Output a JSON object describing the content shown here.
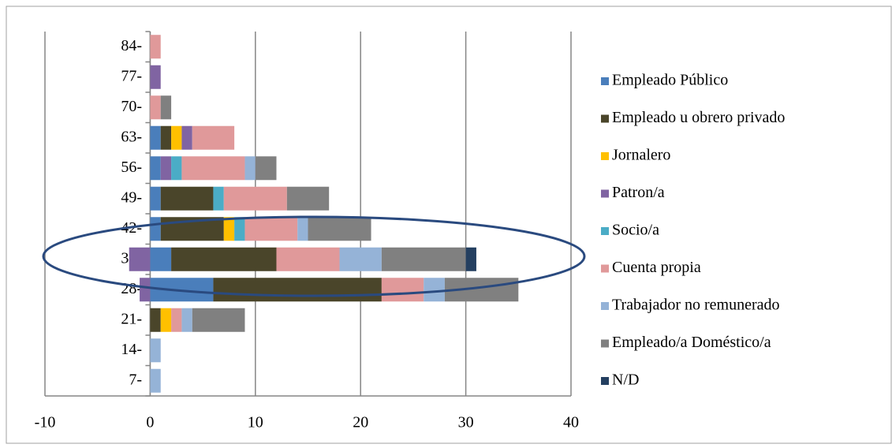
{
  "chart_data": {
    "type": "stacked_barh",
    "categories": [
      "7-",
      "14-",
      "21-",
      "28-",
      "35-",
      "42-",
      "49-",
      "56-",
      "63-",
      "70-",
      "77-",
      "84-"
    ],
    "series": [
      {
        "name": "Empleado Público",
        "color": "#4a7ebb",
        "values": [
          0,
          0,
          0,
          6,
          2,
          1,
          1,
          1,
          1,
          0,
          0,
          0
        ]
      },
      {
        "name": "Empleado u obrero privado",
        "color": "#4a452a",
        "values": [
          0,
          0,
          1,
          16,
          10,
          6,
          5,
          0,
          1,
          0,
          0,
          0
        ]
      },
      {
        "name": "Jornalero",
        "color": "#ffc000",
        "values": [
          0,
          0,
          1,
          0,
          0,
          1,
          0,
          0,
          1,
          0,
          0,
          0
        ]
      },
      {
        "name": "Patron/a",
        "color": "#8064a2",
        "values": [
          0,
          0,
          0,
          -1,
          -2,
          0,
          0,
          1,
          1,
          0,
          1,
          0
        ]
      },
      {
        "name": "Socio/a",
        "color": "#4bacc6",
        "values": [
          0,
          0,
          0,
          0,
          0,
          1,
          1,
          1,
          0,
          0,
          0,
          0
        ]
      },
      {
        "name": "Cuenta propia",
        "color": "#e0999a",
        "values": [
          0,
          0,
          1,
          4,
          6,
          5,
          6,
          6,
          4,
          1,
          0,
          1
        ]
      },
      {
        "name": "Trabajador no remunerado",
        "color": "#95b3d7",
        "values": [
          1,
          1,
          1,
          2,
          4,
          1,
          0,
          1,
          0,
          0,
          0,
          0
        ]
      },
      {
        "name": "Empleado/a Doméstico/a",
        "color": "#808080",
        "values": [
          0,
          0,
          5,
          7,
          8,
          6,
          4,
          2,
          0,
          1,
          0,
          0
        ]
      },
      {
        "name": "N/D",
        "color": "#243f60",
        "values": [
          0,
          0,
          0,
          0,
          1,
          0,
          0,
          0,
          0,
          0,
          0,
          0
        ]
      }
    ],
    "xlim": [
      -10,
      40
    ],
    "xticks": [
      -10,
      0,
      10,
      20,
      30,
      40
    ],
    "grid": true
  }
}
